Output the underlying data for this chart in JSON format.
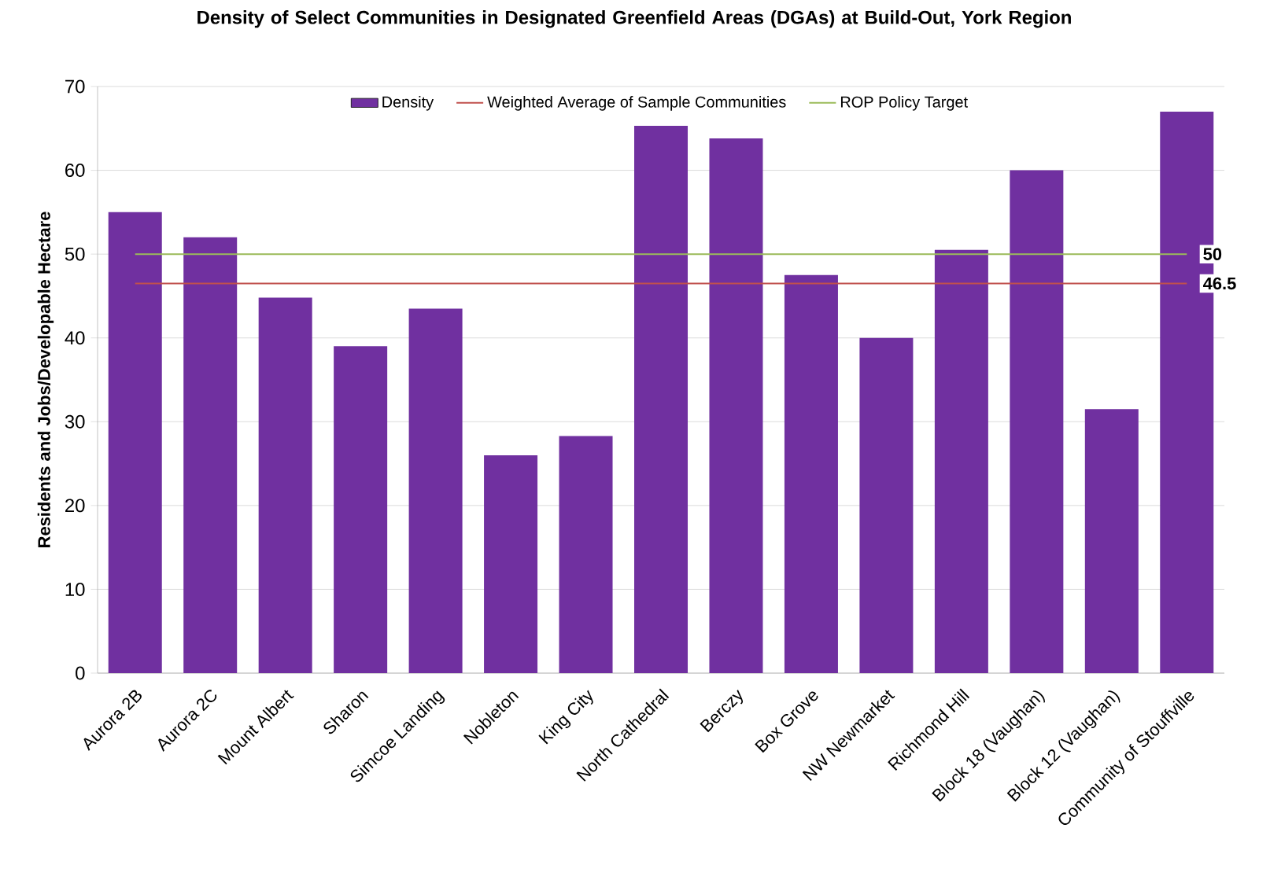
{
  "chart_data": {
    "type": "bar",
    "title": "Density of Select Communities in Designated Greenfield Areas (DGAs) at Build-Out, York Region",
    "ylabel": "Residents and Jobs/Developable Hectare",
    "categories": [
      "Aurora 2B",
      "Aurora 2C",
      "Mount Albert",
      "Sharon",
      "Simcoe Landing",
      "Nobleton",
      "King City",
      "North Cathedral",
      "Berczy",
      "Box Grove",
      "NW Newmarket",
      "Richmond Hill",
      "Block 18 (Vaughan)",
      "Block 12 (Vaughan)",
      "Community of Stouffville"
    ],
    "series": [
      {
        "name": "Density",
        "color": "#7030a0",
        "values": [
          55,
          52,
          44.8,
          39,
          43.5,
          26,
          28.3,
          65.3,
          63.8,
          47.5,
          40,
          50.5,
          60,
          31.5,
          67
        ]
      },
      {
        "name": "Weighted Average of Sample Communities",
        "type": "line",
        "color": "#c0504d",
        "values": [
          46.5,
          46.5,
          46.5,
          46.5,
          46.5,
          46.5,
          46.5,
          46.5,
          46.5,
          46.5,
          46.5,
          46.5,
          46.5,
          46.5,
          46.5
        ],
        "value_labels": [
          null,
          null,
          null,
          null,
          null,
          null,
          null,
          null,
          null,
          null,
          null,
          null,
          null,
          null,
          "46.5"
        ]
      },
      {
        "name": "ROP Policy Target",
        "type": "line",
        "color": "#9bbb59",
        "values": [
          50,
          50,
          50,
          50,
          50,
          50,
          50,
          50,
          50,
          50,
          50,
          50,
          50,
          50,
          50
        ],
        "value_labels": [
          null,
          null,
          null,
          null,
          null,
          null,
          null,
          null,
          null,
          null,
          null,
          null,
          null,
          null,
          "50"
        ]
      }
    ],
    "ylim": [
      0,
      70
    ],
    "yticks": [
      0,
      10,
      20,
      30,
      40,
      50,
      60,
      70
    ],
    "grid": "y",
    "legend": "top"
  }
}
